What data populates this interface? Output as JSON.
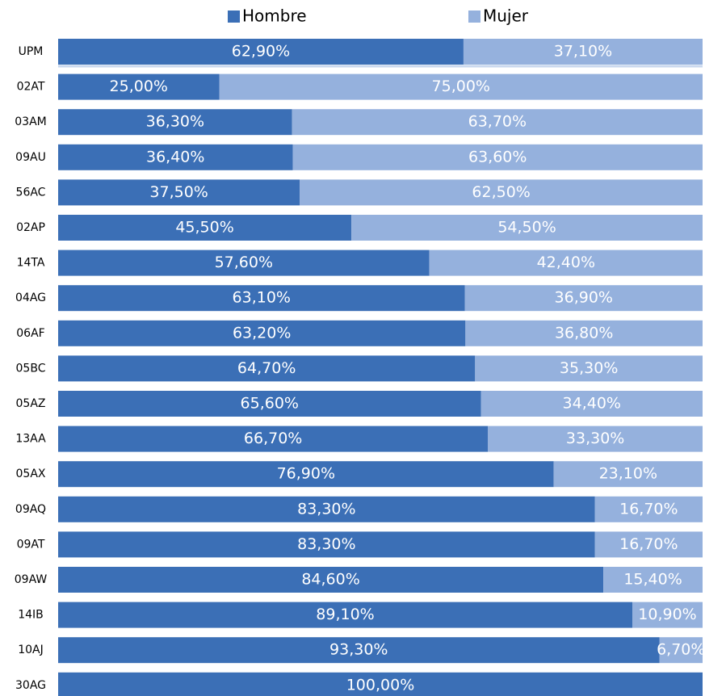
{
  "chart_data": {
    "type": "stacked-bar-horizontal-100",
    "categories": [
      "UPM",
      "02AT",
      "03AM",
      "09AU",
      "56AC",
      "02AP",
      "14TA",
      "04AG",
      "06AF",
      "05BC",
      "05AZ",
      "13AA",
      "05AX",
      "09AQ",
      "09AT",
      "09AW",
      "14IB",
      "10AJ",
      "30AG"
    ],
    "series": [
      {
        "name": "Hombre",
        "color": "#3b6fb6",
        "values": [
          62.9,
          25,
          36.3,
          36.4,
          37.5,
          45.5,
          57.6,
          63.1,
          63.2,
          64.7,
          65.6,
          66.7,
          76.9,
          83.3,
          83.3,
          84.6,
          89.1,
          93.3,
          100
        ],
        "value_labels": [
          "62,90%",
          "25,00%",
          "36,30%",
          "36,40%",
          "37,50%",
          "45,50%",
          "57,60%",
          "63,10%",
          "63,20%",
          "64,70%",
          "65,60%",
          "66,70%",
          "76,90%",
          "83,30%",
          "83,30%",
          "84,60%",
          "89,10%",
          "93,30%",
          "100,00%"
        ]
      },
      {
        "name": "Mujer",
        "color": "#95b1dd",
        "values": [
          37.1,
          75,
          63.7,
          63.6,
          62.5,
          54.5,
          42.4,
          36.9,
          36.8,
          35.3,
          34.4,
          33.3,
          23.1,
          16.7,
          16.7,
          15.4,
          10.9,
          6.7,
          0
        ],
        "value_labels": [
          "37,10%",
          "75,00%",
          "63,70%",
          "63,60%",
          "62,50%",
          "54,50%",
          "42,40%",
          "36,90%",
          "36,80%",
          "35,30%",
          "34,40%",
          "33,30%",
          "23,10%",
          "16,70%",
          "16,70%",
          "15,40%",
          "10,90%",
          "6,70%",
          null
        ]
      }
    ],
    "legend": "top"
  }
}
